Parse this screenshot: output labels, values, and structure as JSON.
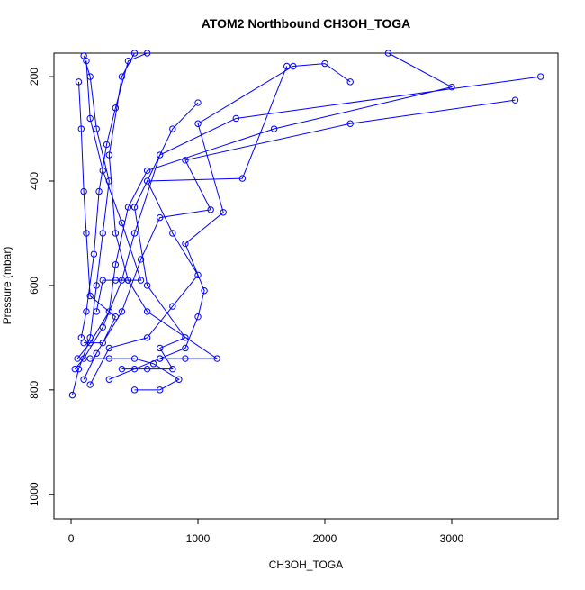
{
  "chart_data": {
    "type": "line",
    "title": "ATOM2 Northbound CH3OH_TOGA",
    "x_label": "CH3OH_TOGA",
    "y_label": "Pressure (mbar)",
    "color": "#0000ff",
    "marker": "circle",
    "x": [
      10,
      60,
      150,
      200,
      250,
      300,
      200,
      150,
      100,
      null,
      30,
      100,
      250,
      400,
      500,
      700,
      1300,
      3700,
      null,
      50,
      150,
      300,
      350,
      450,
      600,
      1600,
      3000,
      2500,
      null,
      100,
      200,
      400,
      550,
      700,
      1100,
      900,
      2200,
      3500,
      null,
      150,
      300,
      600,
      800,
      1000,
      800,
      600,
      1350,
      1700,
      null,
      300,
      500,
      700,
      900,
      1150,
      600,
      450,
      350,
      300,
      400,
      500,
      null,
      200,
      250,
      350,
      450,
      550,
      400,
      250,
      150,
      120,
      null,
      400,
      600,
      800,
      700,
      900,
      600,
      500,
      800,
      1000,
      null,
      80,
      120,
      180,
      220,
      280,
      350,
      450,
      600,
      null,
      500,
      700,
      850,
      650,
      500,
      300,
      150,
      null,
      100,
      250,
      350,
      150,
      120,
      100,
      80,
      60,
      null,
      700,
      900,
      1000,
      1050,
      900,
      1200,
      1000,
      1750,
      2000,
      2200
    ],
    "values": [
      810,
      760,
      700,
      600,
      500,
      400,
      300,
      200,
      160,
      null,
      760,
      740,
      680,
      590,
      500,
      350,
      280,
      200,
      null,
      740,
      710,
      650,
      560,
      450,
      380,
      300,
      220,
      155,
      null,
      780,
      730,
      650,
      550,
      470,
      455,
      360,
      290,
      245,
      null,
      790,
      720,
      700,
      640,
      580,
      500,
      400,
      395,
      180,
      null,
      780,
      760,
      740,
      740,
      740,
      650,
      590,
      500,
      350,
      200,
      155,
      null,
      650,
      590,
      590,
      590,
      590,
      480,
      380,
      280,
      170,
      null,
      760,
      760,
      760,
      720,
      700,
      600,
      450,
      300,
      250,
      null,
      700,
      650,
      540,
      420,
      330,
      260,
      170,
      155,
      null,
      800,
      800,
      780,
      750,
      740,
      740,
      740,
      null,
      710,
      710,
      660,
      620,
      500,
      420,
      300,
      210,
      null,
      740,
      720,
      660,
      610,
      520,
      460,
      290,
      180,
      175,
      210
    ],
    "xlim": [
      -135,
      3837
    ],
    "ylim": [
      1047,
      155
    ],
    "xticks": [
      0,
      1000,
      2000,
      3000
    ],
    "yticks": [
      200,
      400,
      600,
      800,
      1000
    ]
  }
}
